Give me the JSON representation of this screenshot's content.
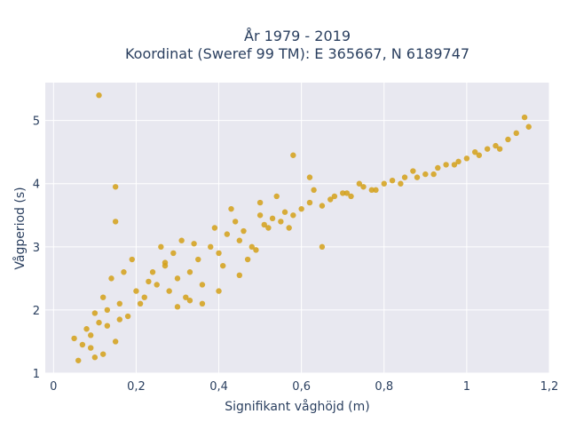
{
  "chart_data": {
    "type": "scatter",
    "title_line1": "År 1979 - 2019",
    "title_line2": "Koordinat (Sweref 99 TM): E 365667, N 6189747",
    "xlabel": "Signifikant våghöjd (m)",
    "ylabel": "Vågperiod (s)",
    "xlim": [
      -0.02,
      1.2
    ],
    "ylim": [
      1.0,
      5.6
    ],
    "xticks": [
      0,
      0.2,
      0.4,
      0.6,
      0.8,
      1.0,
      1.2
    ],
    "xtick_labels": [
      "0",
      "0,2",
      "0,4",
      "0,6",
      "0,8",
      "1",
      "1,2"
    ],
    "yticks": [
      1,
      2,
      3,
      4,
      5
    ],
    "ytick_labels": [
      "1",
      "2",
      "3",
      "4",
      "5"
    ],
    "grid": true,
    "legend": "none",
    "marker_color": "#D4A017",
    "plot_background": "#E8E8F0",
    "series": [
      {
        "x": [
          0.1,
          0.09,
          0.12,
          0.15,
          0.05,
          0.08,
          0.11,
          0.13,
          0.16,
          0.18,
          0.2,
          0.14,
          0.12,
          0.1,
          0.17,
          0.22,
          0.25,
          0.19,
          0.21,
          0.24,
          0.28,
          0.26,
          0.3,
          0.33,
          0.29,
          0.32,
          0.27,
          0.35,
          0.38,
          0.36,
          0.31,
          0.4,
          0.42,
          0.45,
          0.41,
          0.39,
          0.44,
          0.48,
          0.5,
          0.47,
          0.43,
          0.52,
          0.55,
          0.5,
          0.58,
          0.6,
          0.57,
          0.54,
          0.62,
          0.65,
          0.68,
          0.63,
          0.7,
          0.72,
          0.75,
          0.78,
          0.74,
          0.8,
          0.82,
          0.85,
          0.88,
          0.9,
          0.87,
          0.93,
          0.95,
          0.98,
          1.0,
          1.02,
          1.05,
          1.07,
          1.1,
          1.12,
          1.14,
          1.15,
          0.11,
          0.15,
          0.15,
          0.36,
          0.58,
          0.62,
          0.56,
          0.53,
          0.65,
          0.45,
          0.49,
          0.3,
          0.4,
          0.33,
          0.06,
          0.07,
          0.09,
          0.13,
          0.16,
          0.23,
          0.27,
          0.34,
          0.46,
          0.51,
          0.67,
          0.71,
          0.77,
          0.84,
          0.92,
          0.97,
          1.03,
          1.08
        ],
        "y": [
          1.25,
          1.4,
          1.3,
          1.5,
          1.55,
          1.7,
          1.8,
          2.0,
          2.1,
          1.9,
          2.3,
          2.5,
          2.2,
          1.95,
          2.6,
          2.2,
          2.4,
          2.8,
          2.1,
          2.6,
          2.3,
          3.0,
          2.5,
          2.6,
          2.9,
          2.2,
          2.7,
          2.8,
          3.0,
          2.4,
          3.1,
          2.9,
          3.2,
          3.1,
          2.7,
          3.3,
          3.4,
          3.0,
          3.5,
          2.8,
          3.6,
          3.3,
          3.4,
          3.7,
          3.5,
          3.6,
          3.3,
          3.8,
          3.7,
          3.65,
          3.8,
          3.9,
          3.85,
          3.8,
          3.95,
          3.9,
          4.0,
          4.0,
          4.05,
          4.1,
          4.1,
          4.15,
          4.2,
          4.25,
          4.3,
          4.35,
          4.4,
          4.5,
          4.55,
          4.6,
          4.7,
          4.8,
          5.05,
          4.9,
          5.4,
          3.95,
          3.4,
          2.1,
          4.45,
          4.1,
          3.55,
          3.45,
          3.0,
          2.55,
          2.95,
          2.05,
          2.3,
          2.15,
          1.2,
          1.45,
          1.6,
          1.75,
          1.85,
          2.45,
          2.75,
          3.05,
          3.25,
          3.35,
          3.75,
          3.85,
          3.9,
          4.0,
          4.15,
          4.3,
          4.45,
          4.55
        ]
      }
    ]
  }
}
